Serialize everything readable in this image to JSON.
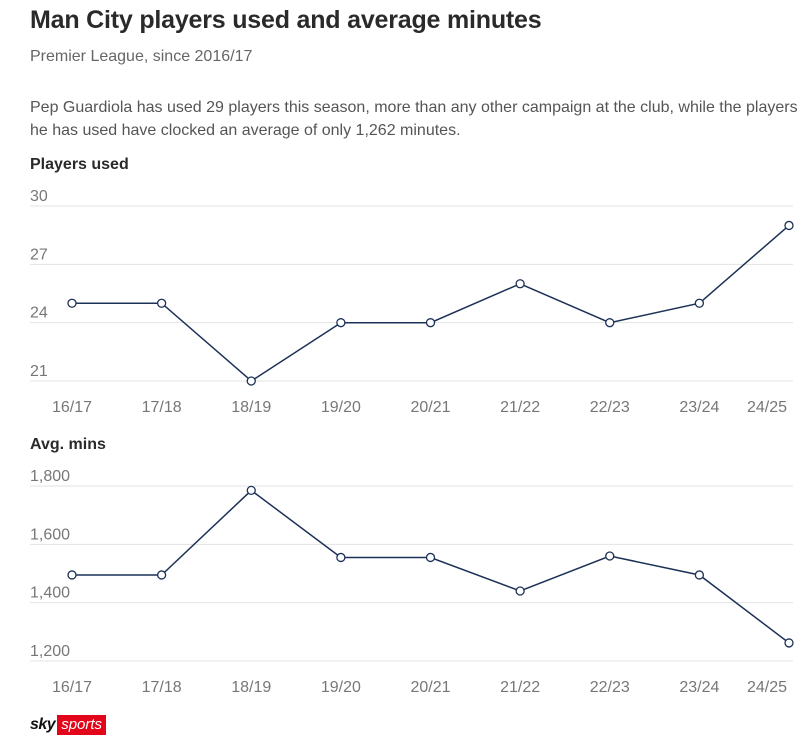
{
  "title": "Man City players used and average minutes",
  "subtitle": "Premier League, since 2016/17",
  "description": "Pep Guardiola has used 29 players this season, more than any other campaign at the club, while the players he has used have clocked an average of only 1,262 minutes.",
  "logo": {
    "sky": "sky",
    "sports": "sports",
    "accent": "#e3061b"
  },
  "colors": {
    "line": "#1c3157",
    "grid": "#e3e3e3",
    "tick": "#777777"
  },
  "chart_data": [
    {
      "type": "line",
      "title": "Players used",
      "categories": [
        "16/17",
        "17/18",
        "18/19",
        "19/20",
        "20/21",
        "21/22",
        "22/23",
        "23/24",
        "24/25"
      ],
      "values": [
        25,
        25,
        21,
        24,
        24,
        26,
        24,
        25,
        29
      ],
      "ylim": [
        21,
        30
      ],
      "yticks": [
        30,
        27,
        24,
        21
      ],
      "ytick_labels": [
        "30",
        "27",
        "24",
        "21"
      ],
      "grid": true,
      "markers": true
    },
    {
      "type": "line",
      "title": "Avg. mins",
      "categories": [
        "16/17",
        "17/18",
        "18/19",
        "19/20",
        "20/21",
        "21/22",
        "22/23",
        "23/24",
        "24/25"
      ],
      "values": [
        1495,
        1495,
        1785,
        1555,
        1555,
        1440,
        1560,
        1495,
        1262
      ],
      "ylim": [
        1200,
        1800
      ],
      "yticks": [
        1800,
        1600,
        1400,
        1200
      ],
      "ytick_labels": [
        "1,800",
        "1,600",
        "1,400",
        "1,200"
      ],
      "grid": true,
      "markers": true
    }
  ]
}
